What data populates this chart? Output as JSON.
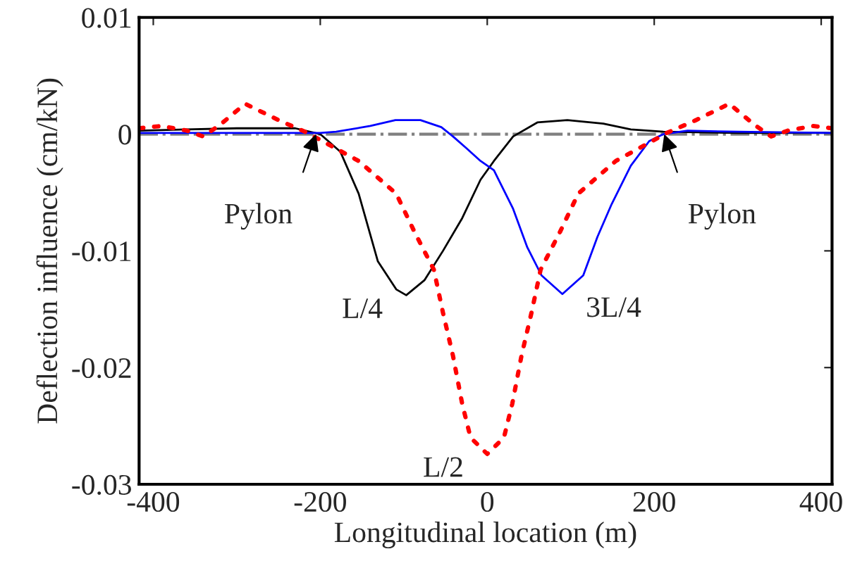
{
  "chart_data": {
    "type": "line",
    "xlabel": "Longitudinal location (m)",
    "ylabel": "Deflection influence (cm/kN)",
    "xlim": [
      -417,
      413
    ],
    "ylim": [
      -0.03,
      0.01
    ],
    "xticks": [
      -400,
      -200,
      0,
      200,
      400
    ],
    "yticks": [
      -0.03,
      -0.02,
      -0.01,
      0,
      0.01
    ],
    "grid": false,
    "legend": false,
    "series": [
      {
        "name": "L/4",
        "color": "#000000",
        "line_style": "solid",
        "x": [
          -417,
          -300,
          -230,
          -200,
          -176,
          -154,
          -131,
          -109,
          -97,
          -75,
          -53,
          -30,
          -8,
          8,
          31,
          60,
          96,
          139,
          172,
          211,
          300,
          413
        ],
        "values": [
          0.0003,
          0.0005,
          0.0005,
          0.0,
          -0.0015,
          -0.0051,
          -0.0109,
          -0.0133,
          -0.0138,
          -0.0125,
          -0.01,
          -0.0072,
          -0.0039,
          -0.0023,
          -0.0002,
          0.001,
          0.0012,
          0.0009,
          0.0004,
          0.0002,
          0.0001,
          0.0001
        ]
      },
      {
        "name": "3L/4",
        "color": "#0000ff",
        "line_style": "solid",
        "x": [
          -417,
          -200,
          -181,
          -140,
          -110,
          -80,
          -55,
          -41,
          -25,
          -8,
          8,
          31,
          48,
          65,
          90,
          115,
          132,
          149,
          172,
          194,
          211,
          240,
          300,
          413
        ],
        "values": [
          0.0001,
          0.0001,
          0.0002,
          0.0007,
          0.0012,
          0.0012,
          0.0006,
          -0.0002,
          -0.0012,
          -0.0023,
          -0.0031,
          -0.0064,
          -0.0097,
          -0.0121,
          -0.0137,
          -0.0121,
          -0.0088,
          -0.006,
          -0.0027,
          -0.0006,
          0.0,
          0.0003,
          0.0002,
          0.0001
        ]
      },
      {
        "name": "L/2",
        "color": "#ff0000",
        "line_style": "dotted",
        "x": [
          -417,
          -390,
          -360,
          -340,
          -320,
          -290,
          -250,
          -215,
          -200,
          -154,
          -109,
          -87,
          -64,
          -53,
          -41,
          -30,
          -20,
          0,
          20,
          30,
          41,
          53,
          64,
          87,
          109,
          154,
          200,
          215,
          250,
          290,
          320,
          340,
          360,
          390,
          413
        ],
        "values": [
          0.0005,
          0.0007,
          0.0003,
          -0.0002,
          0.0008,
          0.0026,
          0.0012,
          0.0001,
          -0.0005,
          -0.0023,
          -0.0051,
          -0.0084,
          -0.0116,
          -0.0153,
          -0.019,
          -0.0231,
          -0.026,
          -0.0274,
          -0.026,
          -0.0231,
          -0.019,
          -0.0153,
          -0.0116,
          -0.0084,
          -0.0051,
          -0.0023,
          -0.0005,
          0.0001,
          0.0012,
          0.0026,
          0.0008,
          -0.0002,
          0.0003,
          0.0007,
          0.0005
        ]
      }
    ],
    "ref_lines": [
      {
        "axis": "y",
        "value": 0,
        "color": "#808080",
        "line_style": "dashdot"
      }
    ],
    "annotations": [
      {
        "text": "Pylon",
        "x": -205,
        "y": 0
      },
      {
        "text": "Pylon",
        "x": 212,
        "y": 0
      }
    ]
  }
}
